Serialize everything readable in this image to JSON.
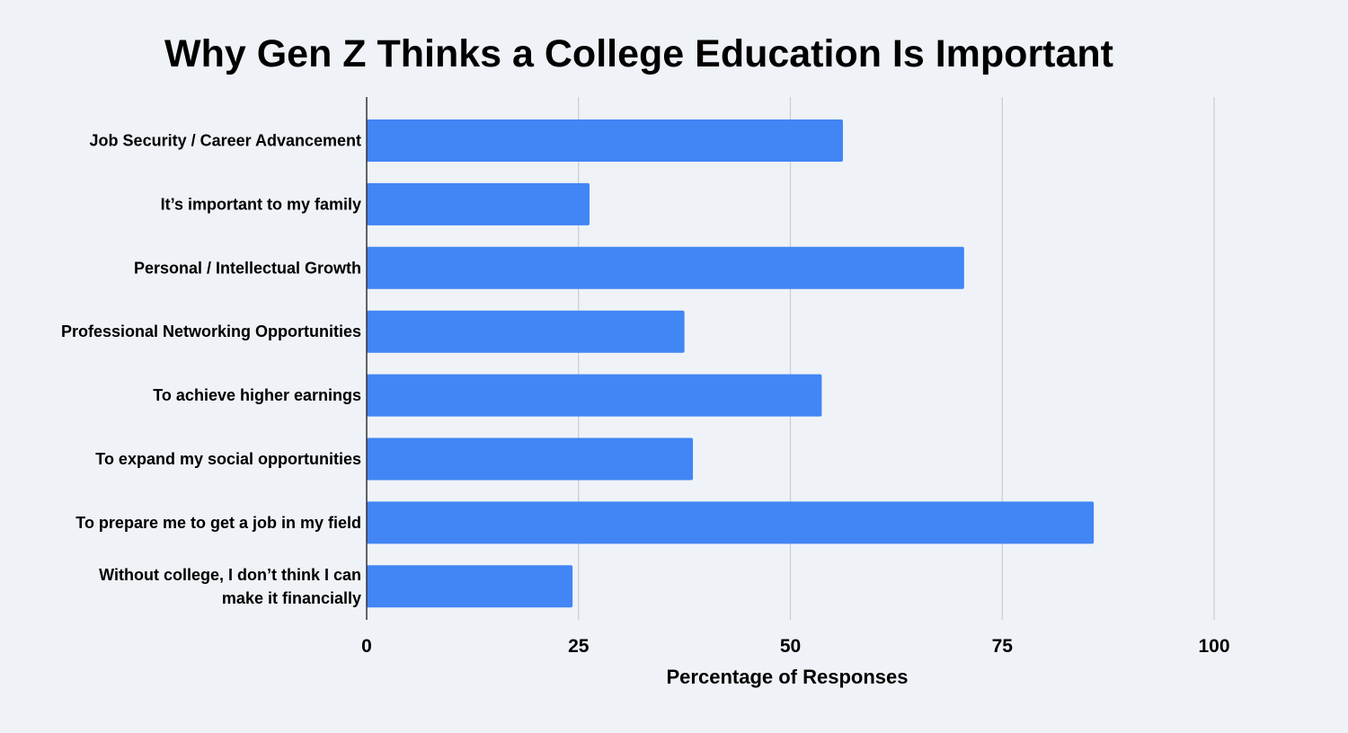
{
  "colors": {
    "background": "#eff3f8",
    "bar": "#4285f4",
    "gridline": "#c9cdd3",
    "axis": "#333333",
    "text": "#000000"
  },
  "chart_data": {
    "type": "bar",
    "orientation": "horizontal",
    "title": "Why Gen Z Thinks a College Education Is Important",
    "xlabel": "Percentage of Responses",
    "ylabel": "",
    "xlim": [
      0,
      100
    ],
    "xticks": [
      0,
      25,
      50,
      75,
      100
    ],
    "grid": true,
    "legend": "none",
    "categories": [
      [
        "Job Security / Career Advancement"
      ],
      [
        "It’s important to my family"
      ],
      [
        "Personal / Intellectual Growth"
      ],
      [
        "Professional Networking Opportunities"
      ],
      [
        "To achieve higher earnings"
      ],
      [
        "To expand my social opportunities"
      ],
      [
        "To prepare me to get a job in my field"
      ],
      [
        "Without college, I don’t think I can",
        "make it financially"
      ]
    ],
    "values": [
      56.2,
      26.3,
      70.5,
      37.5,
      53.7,
      38.5,
      85.8,
      24.3
    ]
  }
}
